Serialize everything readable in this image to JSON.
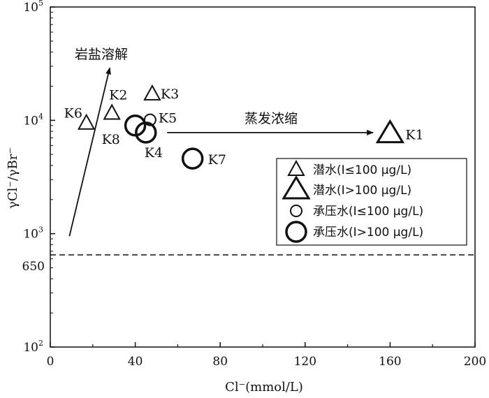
{
  "chart_data": {
    "type": "scatter",
    "xlabel": "Cl⁻(mmol/L)",
    "ylabel": "γCl⁻/γBr⁻",
    "xlim": [
      0,
      200
    ],
    "ylim": [
      100,
      100000
    ],
    "yscale": "log",
    "grid": false,
    "legend_position": "right",
    "x_ticks": [
      "0",
      "40",
      "80",
      "120",
      "160",
      "200"
    ],
    "x_tick_values": [
      0,
      40,
      80,
      120,
      160,
      200
    ],
    "y_ticks": [
      {
        "base": "10",
        "exp": "2",
        "value": 100
      },
      {
        "base": "10",
        "exp": "3",
        "value": 1000
      },
      {
        "base": "10",
        "exp": "4",
        "value": 10000
      },
      {
        "base": "10",
        "exp": "5",
        "value": 100000
      }
    ],
    "reference_line": {
      "label": "650",
      "value": 650,
      "style": "dashed"
    },
    "series": [
      {
        "name": "潜水(I≤100 μg/L)",
        "marker": "triangle-small"
      },
      {
        "name": "潜水(I>100 μg/L)",
        "marker": "triangle-large"
      },
      {
        "name": "承压水(I≤100 μg/L)",
        "marker": "circle-small"
      },
      {
        "name": "承压水(I>100 μg/L)",
        "marker": "circle-large"
      }
    ],
    "points": [
      {
        "label": "K1",
        "x": 160,
        "y": 7600,
        "series": 1
      },
      {
        "label": "K2",
        "x": 29,
        "y": 11500,
        "series": 0
      },
      {
        "label": "K3",
        "x": 48,
        "y": 17000,
        "series": 0
      },
      {
        "label": "K4",
        "x": 45,
        "y": 7800,
        "series": 3
      },
      {
        "label": "K5",
        "x": 47,
        "y": 10100,
        "series": 2
      },
      {
        "label": "K6",
        "x": 17,
        "y": 9400,
        "series": 0
      },
      {
        "label": "K7",
        "x": 67,
        "y": 4600,
        "series": 3
      },
      {
        "label": "K8",
        "x": 40,
        "y": 9000,
        "series": 3
      }
    ],
    "annotations": [
      {
        "text": "岩盐溶解",
        "from": {
          "x": 9,
          "y": 950
        },
        "to": {
          "x": 28,
          "y": 29000
        }
      },
      {
        "text": "蒸发浓缩",
        "from": {
          "x": 55,
          "y": 7800
        },
        "to": {
          "x": 152,
          "y": 7800
        }
      }
    ]
  }
}
